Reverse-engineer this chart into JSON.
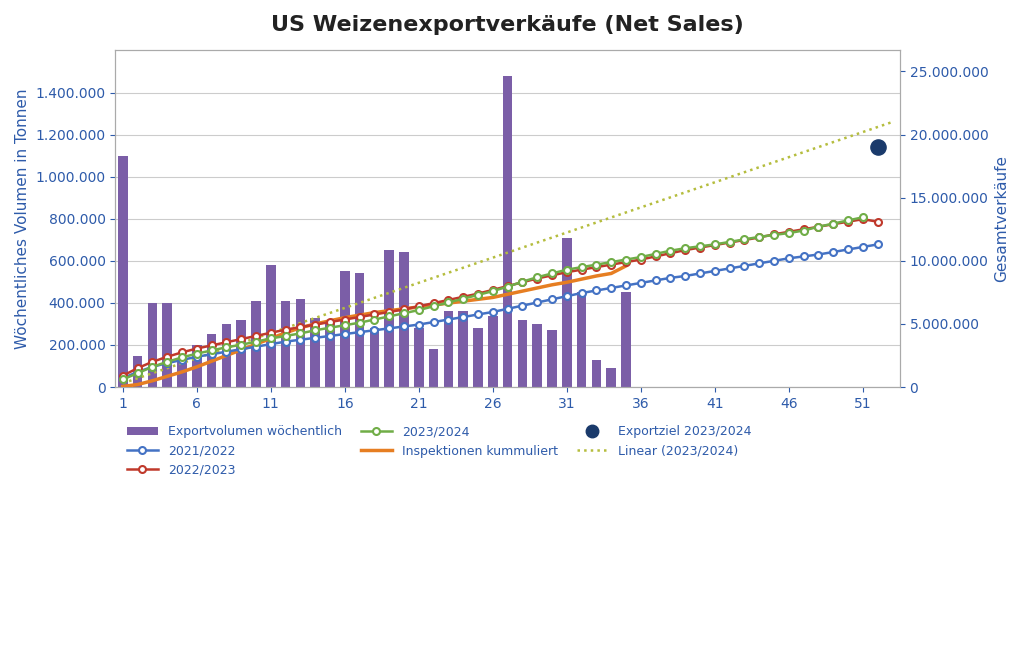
{
  "title": "US Weizenexportverkäufe (Net Sales)",
  "ylabel_left": "Wöchentliches Volumen in Tonnen",
  "ylabel_right": "Gesamtverkäufe",
  "background_color": "#ffffff",
  "grid_color": "#cccccc",
  "bar_weeks": [
    1,
    2,
    3,
    4,
    5,
    6,
    7,
    8,
    9,
    10,
    11,
    12,
    13,
    14,
    15,
    16,
    17,
    18,
    19,
    20,
    21,
    22,
    23,
    24,
    25,
    26,
    27,
    28,
    29,
    30,
    31,
    32,
    33,
    34,
    35
  ],
  "bar_values": [
    1100000,
    150000,
    400000,
    400000,
    130000,
    200000,
    250000,
    300000,
    320000,
    410000,
    580000,
    410000,
    420000,
    330000,
    310000,
    550000,
    540000,
    280000,
    650000,
    640000,
    280000,
    180000,
    360000,
    360000,
    280000,
    340000,
    1480000,
    320000,
    300000,
    270000,
    710000,
    450000,
    130000,
    90000,
    450000
  ],
  "bar_color": "#7b5ea7",
  "weeks_21_22": [
    1,
    2,
    3,
    4,
    5,
    6,
    7,
    8,
    9,
    10,
    11,
    12,
    13,
    14,
    15,
    16,
    17,
    18,
    19,
    20,
    21,
    22,
    23,
    24,
    25,
    26,
    27,
    28,
    29,
    30,
    31,
    32,
    33,
    34,
    35,
    36,
    37,
    38,
    39,
    40,
    41,
    42,
    43,
    44,
    45,
    46,
    47,
    48,
    49,
    50,
    51,
    52
  ],
  "cum_21_22": [
    700000,
    1200000,
    1600000,
    1900000,
    2150000,
    2400000,
    2600000,
    2800000,
    3000000,
    3200000,
    3400000,
    3600000,
    3750000,
    3900000,
    4050000,
    4200000,
    4350000,
    4500000,
    4650000,
    4800000,
    4950000,
    5150000,
    5350000,
    5550000,
    5750000,
    5950000,
    6200000,
    6450000,
    6700000,
    6950000,
    7200000,
    7450000,
    7650000,
    7850000,
    8050000,
    8250000,
    8450000,
    8650000,
    8800000,
    9000000,
    9200000,
    9400000,
    9600000,
    9800000,
    10000000,
    10200000,
    10350000,
    10500000,
    10700000,
    10900000,
    11100000,
    11300000
  ],
  "color_21_22": "#4472c4",
  "weeks_22_23": [
    1,
    2,
    3,
    4,
    5,
    6,
    7,
    8,
    9,
    10,
    11,
    12,
    13,
    14,
    15,
    16,
    17,
    18,
    19,
    20,
    21,
    22,
    23,
    24,
    25,
    26,
    27,
    28,
    29,
    30,
    31,
    32,
    33,
    34,
    35,
    36,
    37,
    38,
    39,
    40,
    41,
    42,
    43,
    44,
    45,
    46,
    47,
    48,
    49,
    50,
    51,
    52
  ],
  "cum_22_23": [
    900000,
    1500000,
    2000000,
    2400000,
    2750000,
    3050000,
    3300000,
    3550000,
    3800000,
    4050000,
    4300000,
    4550000,
    4750000,
    4950000,
    5150000,
    5350000,
    5550000,
    5750000,
    5950000,
    6150000,
    6400000,
    6650000,
    6900000,
    7150000,
    7400000,
    7700000,
    8000000,
    8300000,
    8600000,
    8850000,
    9100000,
    9300000,
    9500000,
    9700000,
    9900000,
    10100000,
    10350000,
    10600000,
    10850000,
    11050000,
    11250000,
    11450000,
    11650000,
    11850000,
    12100000,
    12300000,
    12500000,
    12700000,
    12900000,
    13100000,
    13300000,
    13100000
  ],
  "color_22_23": "#c0392b",
  "weeks_23_24": [
    1,
    2,
    3,
    4,
    5,
    6,
    7,
    8,
    9,
    10,
    11,
    12,
    13,
    14,
    15,
    16,
    17,
    18,
    19,
    20,
    21,
    22,
    23,
    24,
    25,
    26,
    27,
    28,
    29,
    30,
    31,
    32,
    33,
    34,
    35,
    36,
    37,
    38,
    39,
    40,
    41,
    42,
    43,
    44,
    45,
    46,
    47,
    48,
    49,
    50,
    51
  ],
  "cum_23_24": [
    600000,
    1100000,
    1600000,
    2000000,
    2350000,
    2650000,
    2900000,
    3150000,
    3350000,
    3600000,
    3850000,
    4050000,
    4250000,
    4500000,
    4700000,
    4900000,
    5100000,
    5350000,
    5600000,
    5850000,
    6100000,
    6400000,
    6700000,
    7000000,
    7300000,
    7600000,
    7950000,
    8350000,
    8700000,
    9000000,
    9300000,
    9500000,
    9700000,
    9900000,
    10100000,
    10300000,
    10550000,
    10800000,
    11000000,
    11150000,
    11300000,
    11500000,
    11700000,
    11900000,
    12050000,
    12200000,
    12400000,
    12700000,
    12950000,
    13200000,
    13450000
  ],
  "color_23_24": "#70ad47",
  "weeks_insp": [
    1,
    2,
    3,
    4,
    5,
    6,
    7,
    8,
    9,
    10,
    11,
    12,
    13,
    14,
    15,
    16,
    17,
    18,
    19,
    20,
    21,
    22,
    23,
    24,
    25,
    26,
    27,
    28,
    29,
    30,
    31,
    32,
    33,
    34,
    35
  ],
  "insp_values": [
    50000,
    200000,
    500000,
    850000,
    1200000,
    1600000,
    2050000,
    2500000,
    2950000,
    3400000,
    3850000,
    4300000,
    4700000,
    5000000,
    5250000,
    5500000,
    5700000,
    5900000,
    6050000,
    6200000,
    6350000,
    6500000,
    6650000,
    6800000,
    6950000,
    7100000,
    7350000,
    7600000,
    7850000,
    8100000,
    8300000,
    8550000,
    8800000,
    9000000,
    9600000
  ],
  "color_insp": "#e67e22",
  "exportziel_week": 52,
  "exportziel_value": 19000000,
  "exportziel_color": "#1a3a6b",
  "linear_weeks": [
    1,
    53
  ],
  "linear_values": [
    300000,
    21000000
  ],
  "linear_color": "#b5bd3e",
  "ylim_left": [
    0,
    1600000
  ],
  "ylim_right": [
    0,
    26666666
  ],
  "xlim": [
    0.5,
    53.5
  ],
  "xticks": [
    1,
    6,
    11,
    16,
    21,
    26,
    31,
    36,
    41,
    46,
    51
  ],
  "left_yticks": [
    0,
    200000,
    400000,
    600000,
    800000,
    1000000,
    1200000,
    1400000
  ],
  "right_yticks": [
    0,
    5000000,
    10000000,
    15000000,
    20000000,
    25000000
  ],
  "title_fontsize": 16,
  "axis_label_color": "#2e5baa",
  "tick_label_color": "#2e5baa"
}
